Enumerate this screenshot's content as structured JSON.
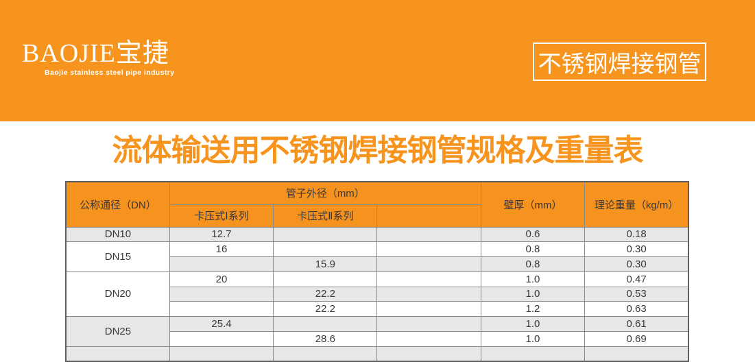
{
  "banner": {
    "logo_text": "BAOJIE宝捷",
    "logo_tagline": "Baojie stainless steel pipe industry",
    "product_badge": "不锈钢焊接钢管"
  },
  "page": {
    "title": "流体输送用不锈钢焊接钢管规格及重量表"
  },
  "colors": {
    "brand_orange": "#F7941E",
    "table_header_orange": "#F6921E",
    "row_stripe_gray": "#E7E6E8",
    "grid_border_gray": "#8A8A8A",
    "text_dark": "#3B3838"
  },
  "table": {
    "header": {
      "dn": "公称通径（DN）",
      "outer_diameter_group": "管子外径（mm）",
      "series1": "卡压式Ⅰ系列",
      "series2": "卡压式Ⅱ系列",
      "series3": "",
      "wall": "壁厚（mm）",
      "weight": "理论重量（kg/m）"
    },
    "groups": [
      {
        "dn": "DN10",
        "rows": [
          {
            "s1": "12.7",
            "s2": "",
            "s3": "",
            "wall": "0.6",
            "weight": "0.18"
          }
        ]
      },
      {
        "dn": "DN15",
        "rows": [
          {
            "s1": "16",
            "s2": "",
            "s3": "",
            "wall": "0.8",
            "weight": "0.30"
          },
          {
            "s1": "",
            "s2": "15.9",
            "s3": "",
            "wall": "0.8",
            "weight": "0.30"
          }
        ]
      },
      {
        "dn": "DN20",
        "rows": [
          {
            "s1": "20",
            "s2": "",
            "s3": "",
            "wall": "1.0",
            "weight": "0.47"
          },
          {
            "s1": "",
            "s2": "22.2",
            "s3": "",
            "wall": "1.0",
            "weight": "0.53"
          },
          {
            "s1": "",
            "s2": "22.2",
            "s3": "",
            "wall": "1.2",
            "weight": "0.63"
          }
        ]
      },
      {
        "dn": "DN25",
        "rows": [
          {
            "s1": "25.4",
            "s2": "",
            "s3": "",
            "wall": "1.0",
            "weight": "0.61"
          },
          {
            "s1": "",
            "s2": "28.6",
            "s3": "",
            "wall": "1.0",
            "weight": "0.69"
          }
        ]
      }
    ]
  }
}
